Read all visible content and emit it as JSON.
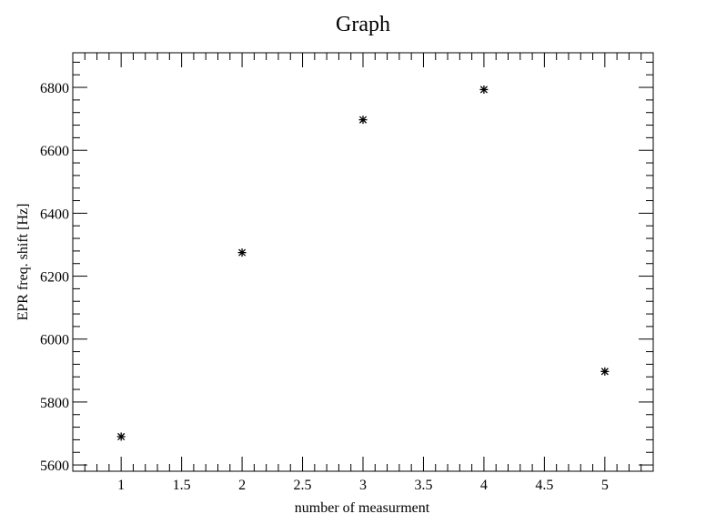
{
  "chart_data": {
    "type": "scatter",
    "title": "Graph",
    "xlabel": "number of measurment",
    "ylabel": "EPR freq. shift [Hz]",
    "xlim": [
      0.6,
      5.4
    ],
    "ylim": [
      5580,
      6910
    ],
    "x_ticks": [
      1,
      1.5,
      2,
      2.5,
      3,
      3.5,
      4,
      4.5,
      5
    ],
    "x_tick_labels": [
      "1",
      "1.5",
      "2",
      "2.5",
      "3",
      "3.5",
      "4",
      "4.5",
      "5"
    ],
    "y_ticks": [
      5600,
      5800,
      6000,
      6200,
      6400,
      6600,
      6800
    ],
    "y_tick_labels": [
      "5600",
      "5800",
      "6000",
      "6200",
      "6400",
      "6600",
      "6800"
    ],
    "x_minor_step": 0.1,
    "y_minor_step": 40,
    "grid": false,
    "marker": "asterisk",
    "series": [
      {
        "x": [
          1,
          2,
          3,
          4,
          5
        ],
        "y": [
          5690,
          6275,
          6697,
          6793,
          5897
        ]
      }
    ]
  }
}
